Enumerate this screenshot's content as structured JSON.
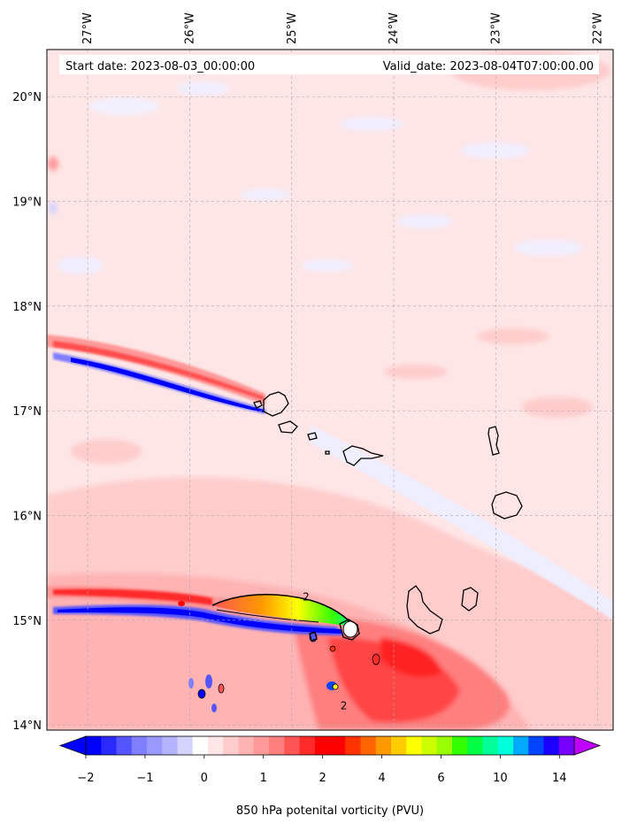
{
  "header": {
    "start_date": "Start date: 2023-08-03_00:00:00",
    "valid_date": "Valid_date: 2023-08-04T07:00:00.00"
  },
  "map": {
    "projection": "plate-carree",
    "lon_range": [
      -27.4,
      -21.85
    ],
    "lat_range": [
      13.95,
      20.45
    ],
    "lon_ticks": [
      {
        "value": -27,
        "label": "27°W"
      },
      {
        "value": -26,
        "label": "26°W"
      },
      {
        "value": -25,
        "label": "25°W"
      },
      {
        "value": -24,
        "label": "24°W"
      },
      {
        "value": -23,
        "label": "23°W"
      },
      {
        "value": -22,
        "label": "22°W"
      }
    ],
    "lat_ticks": [
      {
        "value": 20,
        "label": "20°N"
      },
      {
        "value": 19,
        "label": "19°N"
      },
      {
        "value": 18,
        "label": "18°N"
      },
      {
        "value": 17,
        "label": "17°N"
      },
      {
        "value": 16,
        "label": "16°N"
      },
      {
        "value": 15,
        "label": "15°N"
      },
      {
        "value": 14,
        "label": "14°N"
      }
    ],
    "gridlines": true,
    "background_color": "#ffe6e6",
    "contour_labels": [
      {
        "text": "2",
        "lon": -24.86,
        "lat": 15.19
      },
      {
        "text": "2",
        "lon": -24.49,
        "lat": 14.15
      }
    ]
  },
  "colorbar": {
    "label": "850 hPa potenital vorticity (PVU)",
    "tick_labels": [
      {
        "value": -2,
        "text": "−2"
      },
      {
        "value": -1,
        "text": "−1"
      },
      {
        "value": 0,
        "text": "0"
      },
      {
        "value": 1,
        "text": "1"
      },
      {
        "value": 2,
        "text": "2"
      },
      {
        "value": 4,
        "text": "4"
      },
      {
        "value": 6,
        "text": "6"
      },
      {
        "value": 10,
        "text": "10"
      },
      {
        "value": 14,
        "text": "14"
      }
    ],
    "colors": [
      "#0000ff",
      "#2a2aff",
      "#5555ff",
      "#7f7fff",
      "#9999ff",
      "#b3b3ff",
      "#d4d4ff",
      "#ffffff",
      "#ffe6e6",
      "#ffcccc",
      "#ffb3b3",
      "#ff9999",
      "#ff7f7f",
      "#ff5555",
      "#ff2a2a",
      "#ff0000",
      "#ff0000",
      "#ff3300",
      "#ff6600",
      "#ff9900",
      "#ffcc00",
      "#ffff00",
      "#ccff00",
      "#99ff00",
      "#33ff00",
      "#00ff44",
      "#00ff99",
      "#00ffdd",
      "#00aaff",
      "#0044ff",
      "#1a00ff",
      "#7700ff"
    ],
    "under_color": "#0000ff",
    "over_color": "#c000ff"
  }
}
